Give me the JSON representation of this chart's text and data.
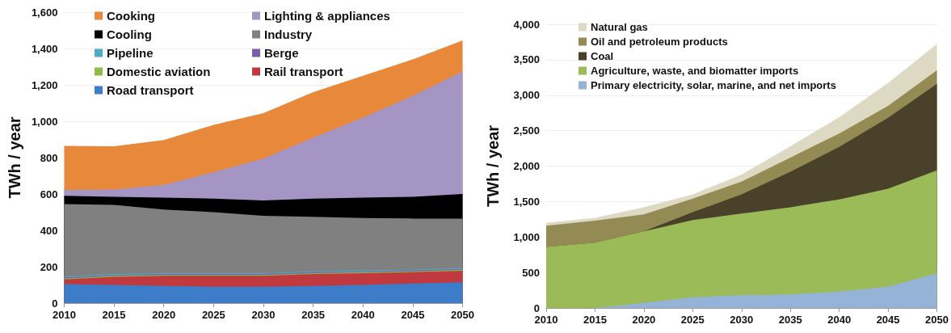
{
  "chart_data": [
    {
      "type": "area",
      "stacked": true,
      "ylabel": "TWh / year",
      "legend": "top left",
      "grid": "y",
      "x": [
        2010,
        2015,
        2020,
        2025,
        2030,
        2035,
        2040,
        2045,
        2050
      ],
      "xlim": [
        2010,
        2050
      ],
      "xticks": [
        2010,
        2015,
        2020,
        2025,
        2030,
        2035,
        2040,
        2045,
        2050
      ],
      "ylim": [
        0,
        1600
      ],
      "yticks": [
        0,
        200,
        400,
        600,
        800,
        {
          "value": 1000,
          "label": "1,000"
        },
        {
          "value": 1200,
          "label": "1,200"
        },
        {
          "value": 1400,
          "label": "1,400"
        },
        {
          "value": 1600,
          "label": "1,600"
        }
      ],
      "series": [
        {
          "name": "Road transport",
          "color": "#3d7cc9",
          "values": [
            105,
            100,
            95,
            90,
            90,
            95,
            100,
            108,
            115
          ]
        },
        {
          "name": "Rail transport",
          "color": "#c0393e",
          "values": [
            25,
            45,
            55,
            60,
            60,
            65,
            65,
            62,
            63
          ]
        },
        {
          "name": "Domestic aviation",
          "color": "#8fbc45",
          "values": [
            5,
            5,
            5,
            5,
            5,
            5,
            5,
            5,
            5
          ]
        },
        {
          "name": "Berge",
          "color": "#7b5ea7",
          "values": [
            5,
            5,
            5,
            5,
            5,
            5,
            5,
            5,
            5
          ]
        },
        {
          "name": "Pipeline",
          "color": "#4bacc6",
          "values": [
            5,
            5,
            5,
            5,
            5,
            5,
            5,
            5,
            5
          ]
        },
        {
          "name": "Industry",
          "color": "#808080",
          "values": [
            400,
            380,
            350,
            335,
            315,
            300,
            288,
            280,
            272
          ]
        },
        {
          "name": "Cooling",
          "color": "#000000",
          "values": [
            45,
            45,
            65,
            75,
            85,
            100,
            112,
            120,
            135
          ]
        },
        {
          "name": "Lighting & appliances",
          "color": "#a595c4",
          "values": [
            32,
            40,
            70,
            145,
            230,
            335,
            440,
            555,
            675
          ]
        },
        {
          "name": "Cooking",
          "color": "#e8883a",
          "values": [
            243,
            237,
            247,
            260,
            250,
            250,
            230,
            200,
            170
          ]
        }
      ]
    },
    {
      "type": "area",
      "stacked": true,
      "ylabel": "TWh / year",
      "legend": "top left",
      "grid": "y",
      "x": [
        2010,
        2015,
        2020,
        2025,
        2030,
        2035,
        2040,
        2045,
        2050
      ],
      "xlim": [
        2010,
        2050
      ],
      "xticks": [
        2010,
        2015,
        2020,
        2025,
        2030,
        2035,
        2040,
        2045,
        2050
      ],
      "ylim": [
        0,
        4000
      ],
      "yticks": [
        0,
        500,
        {
          "value": 1000,
          "label": "1,000"
        },
        {
          "value": 1500,
          "label": "1,500"
        },
        {
          "value": 2000,
          "label": "2,000"
        },
        {
          "value": 2500,
          "label": "2,500"
        },
        {
          "value": 3000,
          "label": "3,000"
        },
        {
          "value": 3500,
          "label": "3,500"
        },
        {
          "value": 4000,
          "label": "4,000"
        }
      ],
      "series": [
        {
          "name": "Primary electricity, solar, marine, and net imports",
          "color": "#95b3d7",
          "values": [
            0,
            0,
            70,
            150,
            180,
            190,
            230,
            300,
            490
          ]
        },
        {
          "name": "Agriculture, waste, and biomatter imports",
          "color": "#9bbb59",
          "values": [
            860,
            920,
            1010,
            1090,
            1150,
            1230,
            1300,
            1380,
            1450
          ]
        },
        {
          "name": "Coal",
          "color": "#4a412a",
          "values": [
            0,
            0,
            0,
            110,
            270,
            500,
            740,
            1000,
            1220
          ]
        },
        {
          "name": "Oil and petroleum products",
          "color": "#948a54",
          "values": [
            300,
            310,
            240,
            190,
            180,
            200,
            190,
            170,
            190
          ]
        },
        {
          "name": "Natural gas",
          "color": "#ddd9c3",
          "values": [
            40,
            40,
            100,
            60,
            100,
            160,
            230,
            320,
            370
          ]
        }
      ]
    }
  ]
}
